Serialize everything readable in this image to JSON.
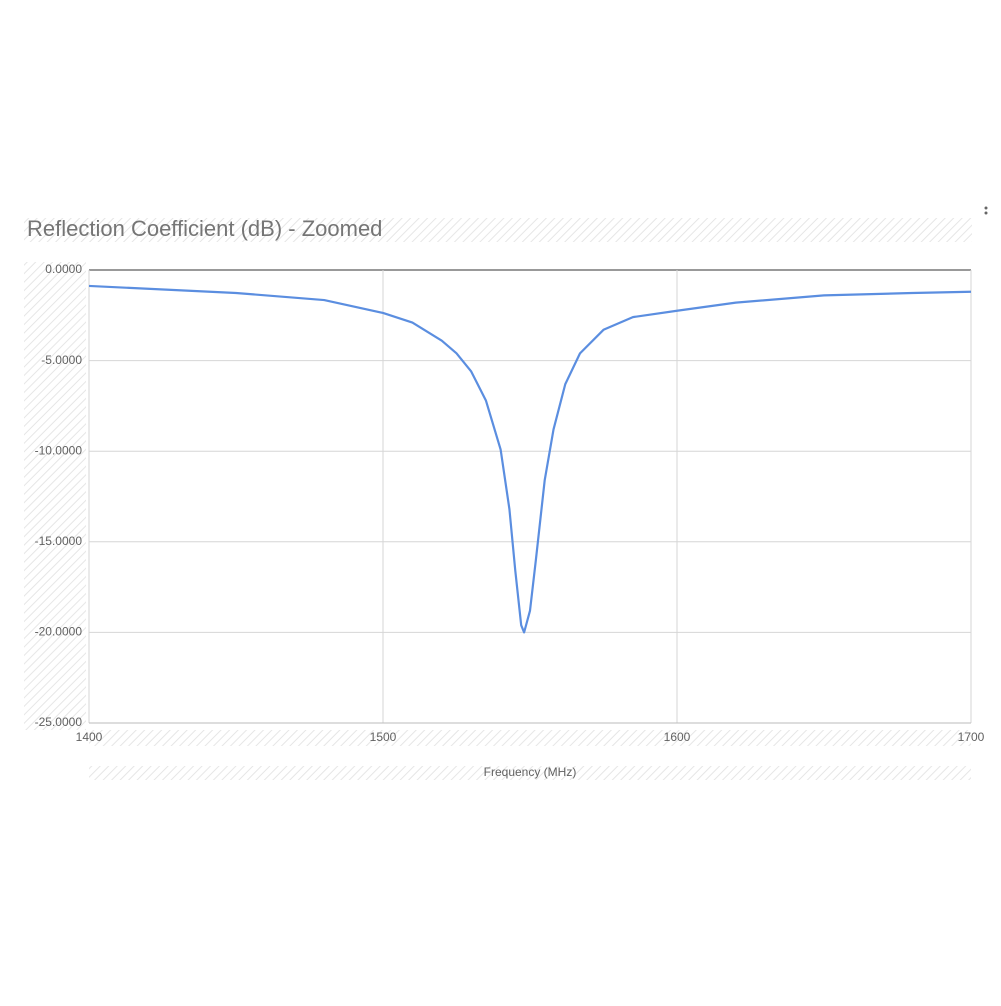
{
  "chart_data": {
    "type": "line",
    "title": "Reflection Coefficient (dB) - Zoomed",
    "x_label": "Frequency (MHz)",
    "xlim": [
      1400,
      1700
    ],
    "xticks": [
      1400,
      1500,
      1600,
      1700
    ],
    "ylim": [
      -25,
      0
    ],
    "yticks": [
      {
        "value": 0,
        "label": "0.0000"
      },
      {
        "value": -5,
        "label": "-5.0000"
      },
      {
        "value": -10,
        "label": "-10.0000"
      },
      {
        "value": -15,
        "label": "-15.0000"
      },
      {
        "value": -20,
        "label": "-20.0000"
      },
      {
        "value": -25,
        "label": "-25.0000"
      }
    ],
    "grid": true,
    "x": [
      1400,
      1450,
      1480,
      1500,
      1510,
      1520,
      1525,
      1530,
      1535,
      1540,
      1543,
      1545,
      1547,
      1548,
      1550,
      1552,
      1555,
      1558,
      1562,
      1567,
      1575,
      1585,
      1600,
      1620,
      1650,
      1680,
      1700
    ],
    "series": [
      {
        "color": "#5b8ee0",
        "values": [
          -0.88,
          -1.27,
          -1.66,
          -2.37,
          -2.9,
          -3.9,
          -4.6,
          -5.6,
          -7.2,
          -9.9,
          -13.2,
          -16.6,
          -19.6,
          -20.0,
          -18.8,
          -16.0,
          -11.6,
          -8.8,
          -6.3,
          -4.6,
          -3.3,
          -2.6,
          -2.25,
          -1.8,
          -1.4,
          -1.27,
          -1.2
        ]
      }
    ]
  }
}
